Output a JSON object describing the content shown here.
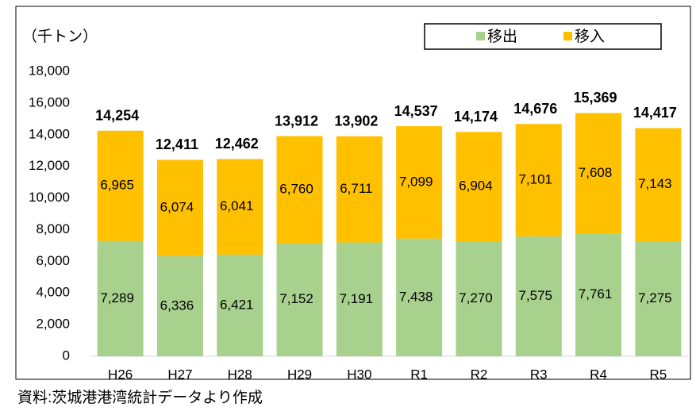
{
  "chart_data": {
    "type": "stacked_bar",
    "unit_label": "（千トン）",
    "source": "資料:茨城港港湾統計データより作成",
    "categories": [
      "H26",
      "H27",
      "H28",
      "H29",
      "H30",
      "R1",
      "R2",
      "R3",
      "R4",
      "R5"
    ],
    "series": [
      {
        "name": "移出",
        "color": "#a9d18e",
        "values": [
          7289,
          6336,
          6421,
          7152,
          7191,
          7438,
          7270,
          7575,
          7761,
          7275
        ],
        "value_labels": [
          "7,289",
          "6,336",
          "6,421",
          "7,152",
          "7,191",
          "7,438",
          "7,270",
          "7,575",
          "7,761",
          "7,275"
        ]
      },
      {
        "name": "移入",
        "color": "#ffc000",
        "values": [
          6965,
          6074,
          6041,
          6760,
          6711,
          7099,
          6904,
          7101,
          7608,
          7143
        ],
        "value_labels": [
          "6,965",
          "6,074",
          "6,041",
          "6,760",
          "6,711",
          "7,099",
          "6,904",
          "7,101",
          "7,608",
          "7,143"
        ]
      }
    ],
    "totals": [
      14254,
      12411,
      12462,
      13912,
      13902,
      14537,
      14174,
      14676,
      15369,
      14417
    ],
    "total_labels": [
      "14,254",
      "12,411",
      "12,462",
      "13,912",
      "13,902",
      "14,537",
      "14,174",
      "14,676",
      "15,369",
      "14,417"
    ],
    "ylim": [
      0,
      18000
    ],
    "yticks": [
      0,
      {
        "value": 2000,
        "label": "2,000"
      },
      {
        "value": 4000,
        "label": "4,000"
      },
      {
        "value": 6000,
        "label": "6,000"
      },
      {
        "value": 8000,
        "label": "8,000"
      },
      {
        "value": 10000,
        "label": "10,000"
      },
      {
        "value": 12000,
        "label": "12,000"
      },
      {
        "value": 14000,
        "label": "14,000"
      },
      {
        "value": 16000,
        "label": "16,000"
      },
      {
        "value": 18000,
        "label": "18,000"
      }
    ],
    "legend": "top-right"
  }
}
